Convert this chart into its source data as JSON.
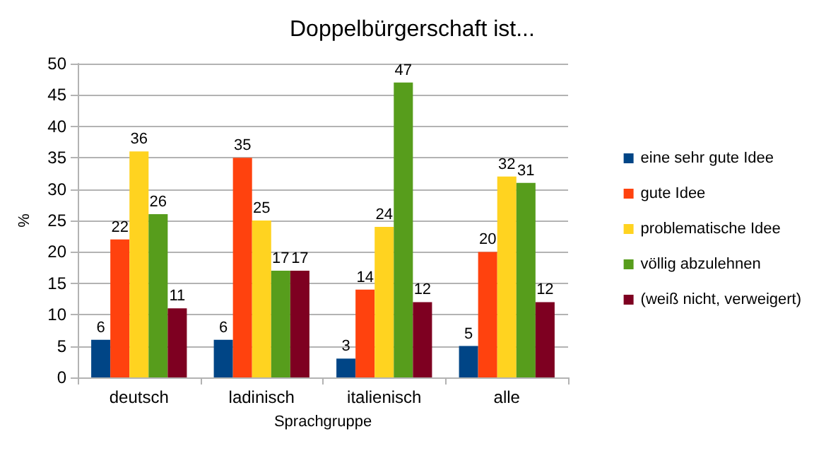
{
  "chart_data": {
    "type": "bar",
    "title": "Doppelbürgerschaft ist...",
    "xlabel": "Sprachgruppe",
    "ylabel": "%",
    "categories": [
      "deutsch",
      "ladinisch",
      "italienisch",
      "alle"
    ],
    "series": [
      {
        "name": "eine sehr gute Idee",
        "color": "#004586",
        "values": [
          6,
          6,
          3,
          5
        ]
      },
      {
        "name": "gute Idee",
        "color": "#ff420e",
        "values": [
          22,
          35,
          14,
          20
        ]
      },
      {
        "name": "problematische Idee",
        "color": "#ffd320",
        "values": [
          36,
          25,
          24,
          32
        ]
      },
      {
        "name": "völlig abzulehnen",
        "color": "#579d1c",
        "values": [
          26,
          17,
          47,
          31
        ]
      },
      {
        "name": "(weiß nicht, verweigert)",
        "color": "#7e0021",
        "values": [
          11,
          17,
          12,
          12
        ]
      }
    ],
    "ylim": [
      0,
      50
    ],
    "yticks": [
      0,
      5,
      10,
      15,
      20,
      25,
      30,
      35,
      40,
      45,
      50
    ],
    "grid": "y",
    "legend": "right",
    "data_labels": true
  }
}
